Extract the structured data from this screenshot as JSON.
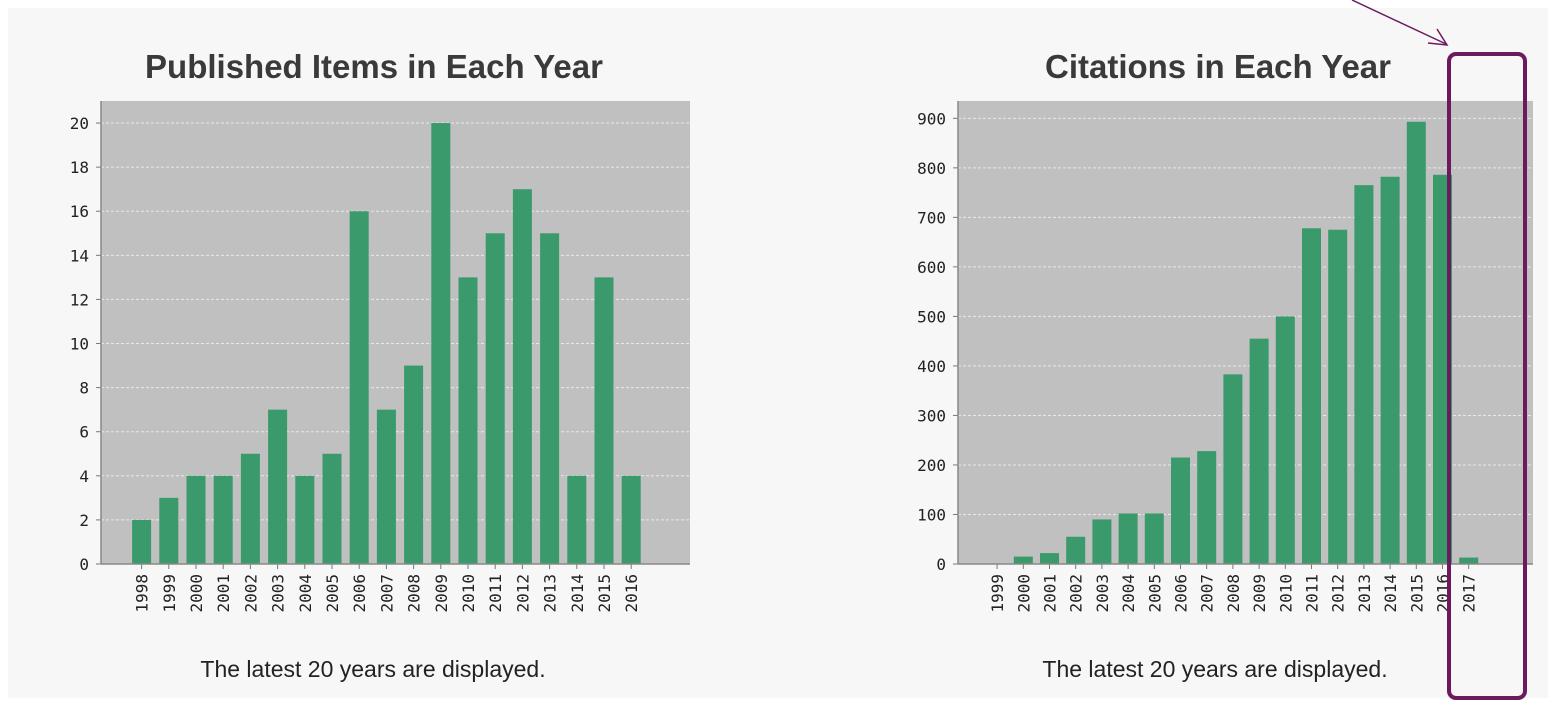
{
  "chart_data": [
    {
      "type": "bar",
      "title": "Published Items in Each Year",
      "caption": "The latest 20 years are displayed.",
      "categories": [
        "1998",
        "1999",
        "2000",
        "2001",
        "2002",
        "2003",
        "2004",
        "2005",
        "2006",
        "2007",
        "2008",
        "2009",
        "2010",
        "2011",
        "2012",
        "2013",
        "2014",
        "2015",
        "2016"
      ],
      "values": [
        2,
        3,
        4,
        4,
        5,
        7,
        4,
        5,
        16,
        7,
        9,
        20,
        13,
        15,
        17,
        15,
        4,
        13,
        4
      ],
      "ylim": [
        0,
        21
      ],
      "yticks": [
        0,
        2,
        4,
        6,
        8,
        10,
        12,
        14,
        16,
        18,
        20
      ],
      "grid": true,
      "colors": {
        "bar": "#3a9a6c",
        "plot_bg": "#c0c0c0",
        "grid": "#e8e8e8"
      }
    },
    {
      "type": "bar",
      "title": "Citations in Each Year",
      "caption": "The latest 20 years are displayed.",
      "categories": [
        "1999",
        "2000",
        "2001",
        "2002",
        "2003",
        "2004",
        "2005",
        "2006",
        "2007",
        "2008",
        "2009",
        "2010",
        "2011",
        "2012",
        "2013",
        "2014",
        "2015",
        "2016",
        "2017"
      ],
      "values": [
        0,
        15,
        22,
        55,
        90,
        102,
        102,
        215,
        228,
        383,
        455,
        500,
        678,
        675,
        765,
        782,
        893,
        786,
        13
      ],
      "ylim": [
        0,
        935
      ],
      "yticks": [
        0,
        100,
        200,
        300,
        400,
        500,
        600,
        700,
        800,
        900
      ],
      "grid": true,
      "colors": {
        "bar": "#3a9a6c",
        "plot_bg": "#c0c0c0",
        "grid": "#e8e8e8"
      }
    }
  ],
  "annotation": {
    "highlight_color": "#6b1a5e",
    "highlight_categories": [
      "2016",
      "2017"
    ]
  }
}
